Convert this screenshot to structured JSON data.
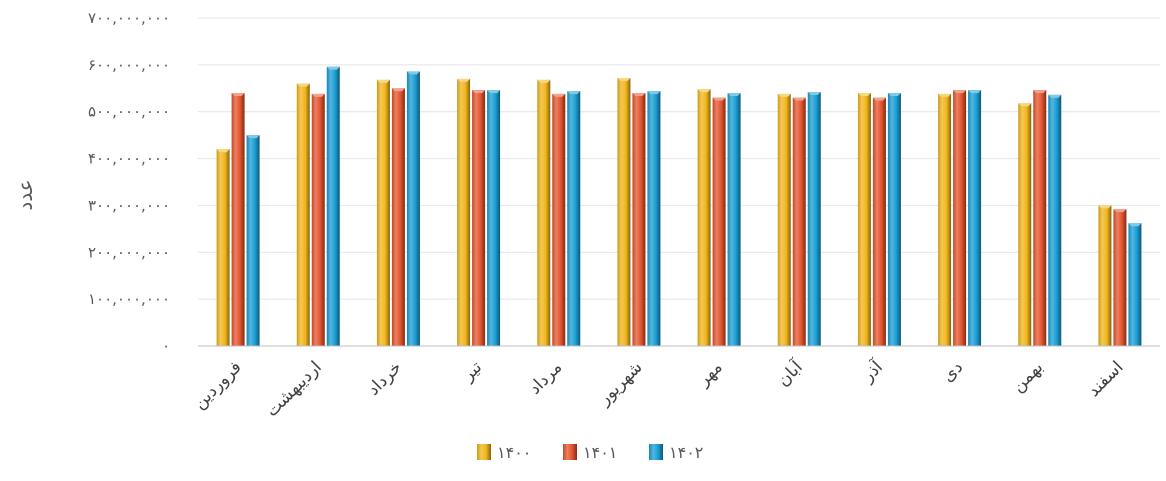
{
  "chart_data": {
    "type": "bar",
    "ylabel": "عدد",
    "ylim": [
      0,
      700000000
    ],
    "y_tick_step": 100000000,
    "y_tick_labels": [
      "۰",
      "۱۰۰,۰۰۰,۰۰۰",
      "۲۰۰,۰۰۰,۰۰۰",
      "۳۰۰,۰۰۰,۰۰۰",
      "۴۰۰,۰۰۰,۰۰۰",
      "۵۰۰,۰۰۰,۰۰۰",
      "۶۰۰,۰۰۰,۰۰۰",
      "۷۰۰,۰۰۰,۰۰۰"
    ],
    "grid": true,
    "legend_position": "bottom",
    "categories": [
      "فروردین",
      "اردیبهشت",
      "خرداد",
      "تیر",
      "مرداد",
      "شهریور",
      "مهر",
      "آبان",
      "آذر",
      "دی",
      "بهمن",
      "اسفند"
    ],
    "series": [
      {
        "name": "۱۴۰۰",
        "color": "#F2B61C",
        "values": [
          420000000,
          560000000,
          568000000,
          570000000,
          568000000,
          572000000,
          548000000,
          538000000,
          540000000,
          538000000,
          518000000,
          300000000
        ]
      },
      {
        "name": "۱۴۰۱",
        "color": "#E4552E",
        "values": [
          540000000,
          538000000,
          550000000,
          546000000,
          538000000,
          540000000,
          530000000,
          530000000,
          530000000,
          546000000,
          546000000,
          292000000
        ]
      },
      {
        "name": "۱۴۰۲",
        "color": "#1A9ED4",
        "values": [
          450000000,
          596000000,
          586000000,
          546000000,
          544000000,
          544000000,
          540000000,
          542000000,
          540000000,
          546000000,
          536000000,
          262000000
        ]
      }
    ]
  }
}
